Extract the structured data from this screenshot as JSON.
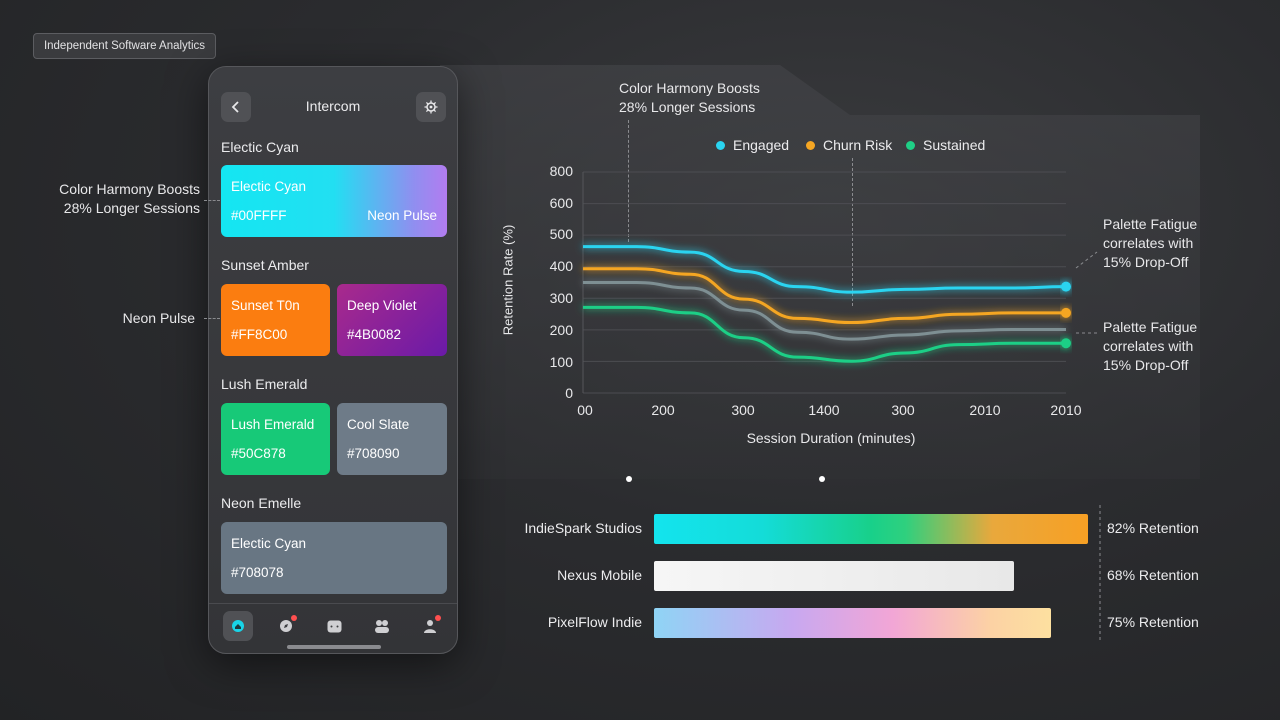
{
  "brand": {
    "tag": "Independent Software Analytics"
  },
  "phone": {
    "title": "Intercom",
    "sections": [
      {
        "title": "Electic Cyan"
      },
      {
        "title": "Sunset Amber"
      },
      {
        "title": "Lush Emerald"
      },
      {
        "title": "Neon Emelle"
      }
    ],
    "swatches": [
      {
        "name": "Electic Cyan",
        "hex": "#00FFFF",
        "extra": "Neon Pulse"
      },
      {
        "name": "Sunset T0n",
        "hex": "#FF8C00"
      },
      {
        "name": "Deep Violet",
        "hex": "#4B0082"
      },
      {
        "name": "Lush Emerald",
        "hex": "#50C878"
      },
      {
        "name": "Cool Slate",
        "hex": "#708090"
      },
      {
        "name": "Electic Cyan",
        "hex": "#708078"
      }
    ],
    "tabs": [
      "home",
      "discover",
      "chat",
      "community",
      "profile"
    ]
  },
  "callouts": {
    "left_harmony": [
      "Color Harmony Boosts",
      "28% Longer Sessions"
    ],
    "left_neon": "Neon Pulse",
    "top_harmony": [
      "Color Harmony Boosts",
      "28% Longer Sessions"
    ],
    "right_fatigue_1": [
      "Palette Fatigue",
      "correlates with",
      "15% Drop-Off"
    ],
    "right_fatigue_2": [
      "Palette Fatigue",
      "correlates with",
      "15% Drop-Off"
    ]
  },
  "chart_data": [
    {
      "type": "line",
      "xlabel": "Session Duration (minutes)",
      "ylabel": "Retention Rate (%)",
      "ylim": [
        0,
        800
      ],
      "yticks": [
        "800",
        "600",
        "500",
        "400",
        "300",
        "200",
        "100",
        "0"
      ],
      "xtick_labels": [
        "00",
        "200",
        "300",
        "1400",
        "300",
        "2010",
        "2010"
      ],
      "grid": true,
      "legend_position": "top",
      "series": [
        {
          "name": "Engaged",
          "color": "#2ad4f0",
          "values": [
            530,
            530,
            510,
            440,
            385,
            365,
            375,
            380,
            380,
            385
          ]
        },
        {
          "name": "Churn Risk",
          "color": "#f5a623",
          "values": [
            450,
            450,
            430,
            340,
            270,
            255,
            270,
            285,
            290,
            290
          ]
        },
        {
          "name": "",
          "color": "#7e8f93",
          "values": [
            400,
            400,
            380,
            300,
            220,
            195,
            210,
            225,
            230,
            230
          ]
        },
        {
          "name": "Sustained",
          "color": "#1fcf86",
          "values": [
            310,
            310,
            290,
            200,
            130,
            115,
            145,
            175,
            180,
            180
          ]
        }
      ]
    },
    {
      "type": "bar",
      "orientation": "horizontal",
      "categories": [
        "IndieSpark Studios",
        "Nexus Mobile",
        "PixelFlow Indie"
      ],
      "values": [
        82,
        68,
        75
      ],
      "value_labels": [
        "82% Retention",
        "68% Retention",
        "75% Retention"
      ],
      "colors": [
        "gradient-cyan-green-amber",
        "#ececec",
        "gradient-sky-pink-peach"
      ]
    }
  ]
}
